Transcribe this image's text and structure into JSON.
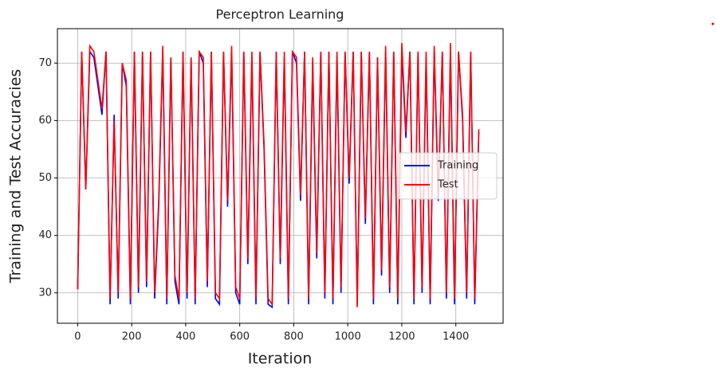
{
  "chart_data": {
    "type": "line",
    "title": "Perceptron Learning",
    "xlabel": "Iteration",
    "ylabel": "Training and Test Accuracies",
    "x": [
      0,
      15,
      30,
      45,
      60,
      75,
      90,
      105,
      120,
      135,
      150,
      165,
      180,
      195,
      210,
      225,
      240,
      255,
      270,
      285,
      300,
      315,
      330,
      345,
      360,
      375,
      390,
      405,
      420,
      435,
      450,
      465,
      480,
      495,
      510,
      525,
      540,
      555,
      570,
      585,
      600,
      615,
      630,
      645,
      660,
      675,
      690,
      705,
      720,
      735,
      750,
      765,
      780,
      795,
      810,
      825,
      840,
      855,
      870,
      885,
      900,
      915,
      930,
      945,
      960,
      975,
      990,
      1005,
      1020,
      1035,
      1050,
      1065,
      1080,
      1095,
      1110,
      1125,
      1140,
      1155,
      1170,
      1185,
      1200,
      1215,
      1230,
      1245,
      1260,
      1275,
      1290,
      1305,
      1320,
      1335,
      1350,
      1365,
      1380,
      1395,
      1410,
      1425,
      1440,
      1455,
      1470,
      1485
    ],
    "series": [
      {
        "name": "Training",
        "color": "#0000ff",
        "values": [
          30.6,
          72,
          48,
          72,
          71,
          66,
          61,
          72,
          28,
          61,
          29,
          70,
          66,
          28,
          72,
          30,
          72,
          31,
          72,
          29,
          45,
          72,
          28,
          71,
          32,
          28,
          72,
          29,
          71,
          28,
          72,
          70,
          31,
          72,
          29,
          28,
          72,
          45,
          72,
          30,
          28,
          72,
          35,
          71,
          28,
          72,
          55,
          28,
          27.5,
          72,
          35,
          71,
          28,
          72,
          70,
          46,
          72,
          28,
          70,
          36,
          72,
          29,
          72,
          28,
          71,
          30,
          72,
          49,
          72,
          28,
          72,
          42,
          72,
          28,
          71,
          33,
          72,
          30,
          72,
          28,
          72,
          57,
          72,
          28,
          72,
          30,
          71,
          28,
          72,
          46,
          72,
          29,
          72,
          28,
          72,
          60,
          29,
          72,
          28,
          58
        ]
      },
      {
        "name": "Test",
        "color": "#ff0000",
        "values": [
          30.6,
          72,
          48,
          73,
          72,
          67,
          62,
          72,
          29,
          60,
          30,
          70,
          67,
          29,
          72,
          31,
          72,
          32,
          72,
          30,
          46,
          73,
          29,
          71,
          33,
          29,
          72,
          30,
          71,
          29,
          72,
          71,
          32,
          72,
          30,
          29,
          72,
          46,
          73,
          31,
          29,
          72,
          36,
          72,
          29,
          72,
          56,
          29,
          28,
          72,
          36,
          72,
          29,
          72,
          71,
          47,
          72,
          29,
          71,
          37,
          72,
          30,
          72,
          29,
          72,
          31,
          72,
          50,
          72,
          27.5,
          72,
          43,
          72,
          29,
          71,
          34,
          73,
          31,
          72,
          29,
          73.5,
          58,
          72,
          29,
          72,
          31,
          72,
          29,
          73,
          47,
          72,
          30,
          73.5,
          29,
          72,
          61,
          30,
          72,
          29,
          58.5
        ]
      }
    ],
    "xlim": [
      -75,
      1575
    ],
    "ylim": [
      24.7,
      76
    ],
    "xticks": [
      0,
      200,
      400,
      600,
      800,
      1000,
      1200,
      1400
    ],
    "yticks": [
      30,
      40,
      50,
      60,
      70
    ],
    "grid": true,
    "legend": "center right"
  }
}
